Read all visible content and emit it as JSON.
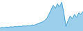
{
  "chart_data": {
    "type": "area",
    "values": [
      10,
      12,
      11,
      13,
      12,
      14,
      13,
      15,
      14,
      16,
      15,
      17,
      16,
      18,
      17,
      20,
      19,
      22,
      24,
      27,
      30,
      35,
      42,
      55,
      70,
      85,
      75,
      90,
      80,
      95,
      60,
      15,
      35,
      50,
      40,
      55,
      45,
      60,
      55,
      65
    ],
    "color": "#3a9fd8",
    "ylim": [
      0,
      102.6
    ],
    "grid": false,
    "tick_labels": false
  }
}
